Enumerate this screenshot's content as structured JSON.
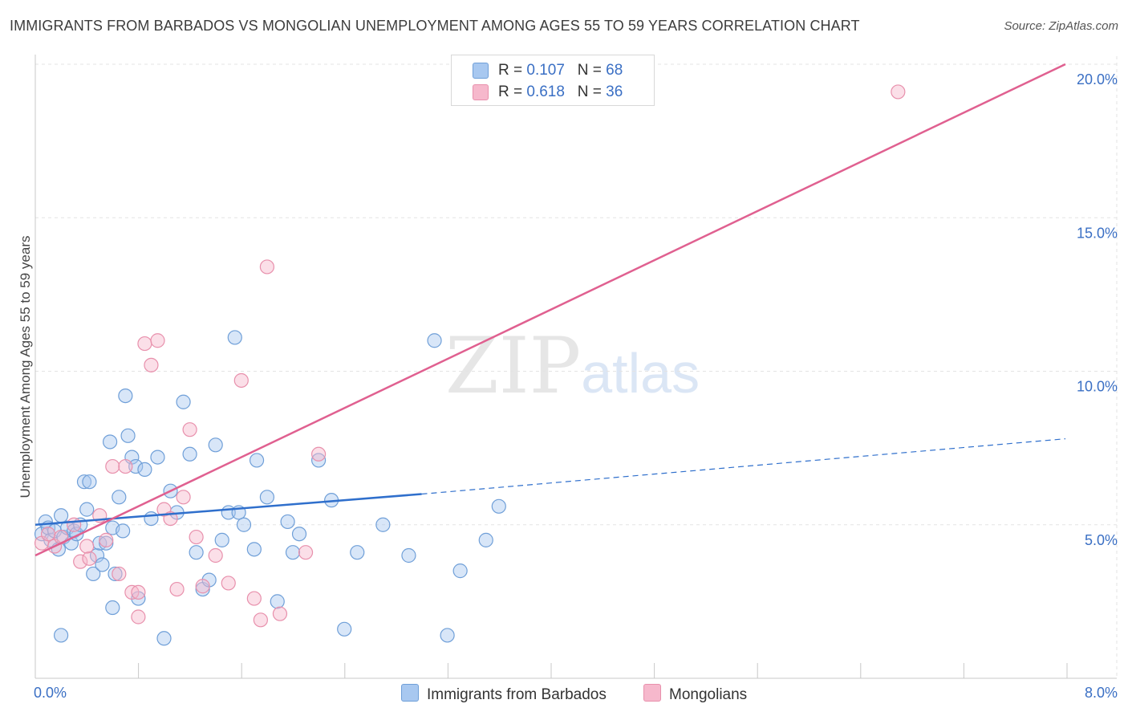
{
  "title": "IMMIGRANTS FROM BARBADOS VS MONGOLIAN UNEMPLOYMENT AMONG AGES 55 TO 59 YEARS CORRELATION CHART",
  "source": "Source: ZipAtlas.com",
  "watermark": {
    "zip": "ZIP",
    "atlas": "atlas"
  },
  "legend": [
    {
      "r_label": "R = ",
      "r_value": "0.107",
      "n_label": "N = ",
      "n_value": "68"
    },
    {
      "r_label": "R = ",
      "r_value": "0.618",
      "n_label": "N = ",
      "n_value": "36"
    }
  ],
  "colors": {
    "barbados_fill": "#a8c8f0",
    "barbados_stroke": "#6f9fd8",
    "barbados_line": "#2f6fcc",
    "mongolian_fill": "#f6b8cc",
    "mongolian_stroke": "#e890ac",
    "mongolian_line": "#e06090",
    "tick_label": "#3a6fc4",
    "grid": "#e3e3e3"
  },
  "chart_data": {
    "type": "scatter",
    "ylabel": "Unemployment Among Ages 55 to 59 years",
    "xlim": [
      0.0,
      8.0
    ],
    "ylim": [
      0.0,
      20.5
    ],
    "x_tick_labels": [
      "0.0%",
      "8.0%"
    ],
    "y_ticks": [
      5.0,
      10.0,
      15.0,
      20.0
    ],
    "y_tick_labels": [
      "5.0%",
      "10.0%",
      "15.0%",
      "20.0%"
    ],
    "grid": true,
    "legend_placement": "top-center",
    "series": [
      {
        "name": "Immigrants from Barbados",
        "trend": {
          "x0": 0.0,
          "y0": 5.0,
          "x1": 3.0,
          "y1": 6.0,
          "x_dash_end": 8.0,
          "y_dash_end": 7.8
        },
        "points": [
          [
            0.05,
            4.7
          ],
          [
            0.08,
            5.1
          ],
          [
            0.1,
            4.9
          ],
          [
            0.12,
            4.5
          ],
          [
            0.15,
            4.8
          ],
          [
            0.18,
            4.2
          ],
          [
            0.2,
            5.3
          ],
          [
            0.22,
            4.6
          ],
          [
            0.25,
            4.9
          ],
          [
            0.28,
            4.4
          ],
          [
            0.3,
            4.8
          ],
          [
            0.32,
            4.7
          ],
          [
            0.35,
            5.0
          ],
          [
            0.38,
            6.4
          ],
          [
            0.4,
            5.5
          ],
          [
            0.42,
            6.4
          ],
          [
            0.45,
            3.4
          ],
          [
            0.48,
            4.0
          ],
          [
            0.5,
            4.4
          ],
          [
            0.52,
            3.7
          ],
          [
            0.55,
            4.4
          ],
          [
            0.58,
            7.7
          ],
          [
            0.6,
            4.9
          ],
          [
            0.62,
            3.4
          ],
          [
            0.65,
            5.9
          ],
          [
            0.68,
            4.8
          ],
          [
            0.7,
            9.2
          ],
          [
            0.72,
            7.9
          ],
          [
            0.75,
            7.2
          ],
          [
            0.78,
            6.9
          ],
          [
            0.8,
            2.6
          ],
          [
            0.85,
            6.8
          ],
          [
            0.9,
            5.2
          ],
          [
            0.95,
            7.2
          ],
          [
            1.05,
            6.1
          ],
          [
            1.1,
            5.4
          ],
          [
            1.15,
            9.0
          ],
          [
            1.2,
            7.3
          ],
          [
            1.25,
            4.1
          ],
          [
            1.3,
            2.9
          ],
          [
            1.35,
            3.2
          ],
          [
            1.4,
            7.6
          ],
          [
            1.45,
            4.5
          ],
          [
            1.5,
            5.4
          ],
          [
            1.55,
            11.1
          ],
          [
            1.58,
            5.4
          ],
          [
            1.62,
            5.0
          ],
          [
            1.7,
            4.2
          ],
          [
            1.72,
            7.1
          ],
          [
            1.8,
            5.9
          ],
          [
            1.88,
            2.5
          ],
          [
            1.96,
            5.1
          ],
          [
            2.0,
            4.1
          ],
          [
            2.05,
            4.7
          ],
          [
            2.2,
            7.1
          ],
          [
            2.3,
            5.8
          ],
          [
            2.4,
            1.6
          ],
          [
            2.5,
            4.1
          ],
          [
            2.7,
            5.0
          ],
          [
            2.9,
            4.0
          ],
          [
            3.1,
            11.0
          ],
          [
            3.2,
            1.4
          ],
          [
            3.3,
            3.5
          ],
          [
            3.5,
            4.5
          ],
          [
            3.6,
            5.6
          ],
          [
            0.6,
            2.3
          ],
          [
            1.0,
            1.3
          ],
          [
            0.2,
            1.4
          ]
        ]
      },
      {
        "name": "Mongolians",
        "trend": {
          "x0": 0.0,
          "y0": 4.0,
          "x1": 8.0,
          "y1": 20.0
        },
        "points": [
          [
            0.05,
            4.4
          ],
          [
            0.1,
            4.7
          ],
          [
            0.15,
            4.3
          ],
          [
            0.2,
            4.6
          ],
          [
            0.3,
            5.0
          ],
          [
            0.35,
            3.8
          ],
          [
            0.42,
            3.9
          ],
          [
            0.5,
            5.3
          ],
          [
            0.55,
            4.5
          ],
          [
            0.6,
            6.9
          ],
          [
            0.65,
            3.4
          ],
          [
            0.7,
            6.9
          ],
          [
            0.75,
            2.8
          ],
          [
            0.8,
            2.8
          ],
          [
            0.85,
            10.9
          ],
          [
            0.9,
            10.2
          ],
          [
            0.95,
            11.0
          ],
          [
            1.0,
            5.5
          ],
          [
            1.05,
            5.2
          ],
          [
            1.1,
            2.9
          ],
          [
            1.15,
            5.9
          ],
          [
            1.2,
            8.1
          ],
          [
            1.25,
            4.6
          ],
          [
            1.3,
            3.0
          ],
          [
            1.4,
            4.0
          ],
          [
            1.5,
            3.1
          ],
          [
            1.6,
            9.7
          ],
          [
            1.7,
            2.6
          ],
          [
            1.75,
            1.9
          ],
          [
            1.8,
            13.4
          ],
          [
            1.9,
            2.1
          ],
          [
            2.1,
            4.1
          ],
          [
            2.2,
            7.3
          ],
          [
            6.7,
            19.1
          ],
          [
            0.8,
            2.0
          ],
          [
            0.4,
            4.3
          ]
        ]
      }
    ]
  }
}
